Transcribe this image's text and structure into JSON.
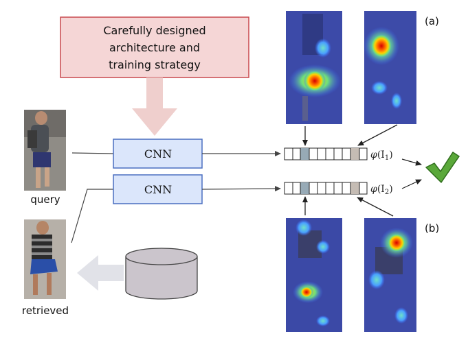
{
  "design_box": {
    "line1": "Carefully designed",
    "line2": "architecture and",
    "line3": "training strategy"
  },
  "cnn_top": {
    "label": "CNN"
  },
  "cnn_bottom": {
    "label": "CNN"
  },
  "labels": {
    "query": "query",
    "retrieved": "retrieved",
    "panel_a": "(a)",
    "panel_b": "(b)",
    "phi1_phi": "φ",
    "phi1_arg": "(I",
    "phi1_sub": "1",
    "phi1_close": ")",
    "phi2_phi": "φ",
    "phi2_arg": "(I",
    "phi2_sub": "2",
    "phi2_close": ")"
  },
  "colors": {
    "design_fill": "#f5d6d6",
    "design_stroke": "#c8484e",
    "cnn_fill": "#dbe6fb",
    "cnn_stroke": "#4a6fc0",
    "highlight_slot": "#97aab6",
    "highlight_slot_2": "#c5bcb4",
    "check": "#4e9a2f",
    "big_arrow": "#efcfcd",
    "db_arrow": "#e1e2e8"
  },
  "icons": {
    "check": "check-mark-icon",
    "database": "database-icon"
  }
}
